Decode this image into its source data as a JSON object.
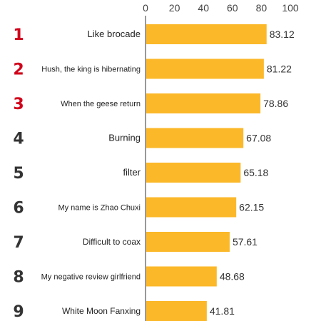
{
  "chart_data": {
    "type": "bar",
    "orientation": "horizontal",
    "title": "",
    "xlabel": "",
    "ylabel": "",
    "xlim": [
      0,
      100
    ],
    "x_ticks": [
      "0",
      "20",
      "40",
      "60",
      "80",
      "100"
    ],
    "grid": false,
    "legend": "none",
    "ranks": [
      "1",
      "2",
      "3",
      "4",
      "5",
      "6",
      "7",
      "8",
      "9"
    ],
    "categories": [
      "Like brocade",
      "Hush, the king is hibernating",
      "When the geese return",
      "Burning",
      "filter",
      "My name is Zhao Chuxi",
      "Difficult to coax",
      "My negative review girlfriend",
      "White Moon Fanxing"
    ],
    "values": [
      83.12,
      81.22,
      78.86,
      67.08,
      65.18,
      62.15,
      57.61,
      48.68,
      41.81
    ],
    "value_labels": [
      "83.12",
      "81.22",
      "78.86",
      "67.08",
      "65.18",
      "62.15",
      "57.61",
      "48.68",
      "41.81"
    ],
    "colors": {
      "bar": "#FBB829",
      "top_rank": "#D0021B",
      "other_rank": "#333333",
      "axis": "#333333"
    }
  }
}
